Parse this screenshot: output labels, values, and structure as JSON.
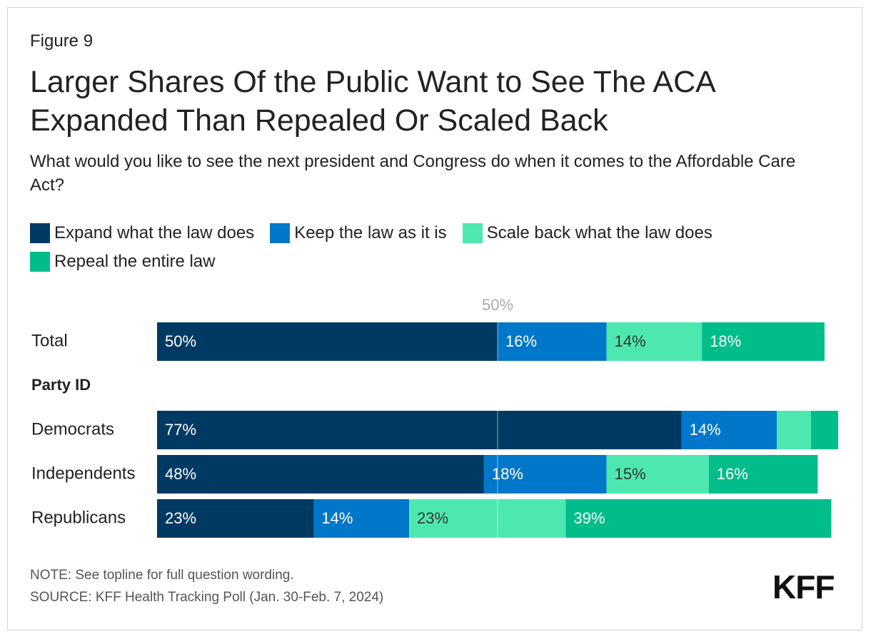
{
  "chart_data": {
    "type": "stacked-bar",
    "figure_label": "Figure 9",
    "title": "Larger Shares Of the Public Want to See The ACA Expanded Than Repealed Or Scaled Back",
    "subtitle": "What would you like to see the next president and Congress do when it comes to the Affordable Care Act?",
    "categories": [
      "Total",
      "Democrats",
      "Independents",
      "Republicans"
    ],
    "group_label": "Party ID",
    "series": [
      {
        "name": "Expand what the law does",
        "color": "#003a63",
        "values": [
          50,
          77,
          48,
          23
        ],
        "value_labels": [
          "50%",
          "77%",
          "48%",
          "23%"
        ]
      },
      {
        "name": "Keep the law as it is",
        "color": "#0077c8",
        "values": [
          16,
          14,
          18,
          14
        ],
        "value_labels": [
          "16%",
          "14%",
          "18%",
          "14%"
        ]
      },
      {
        "name": "Scale back what the law does",
        "color": "#4de8b0",
        "values": [
          14,
          5,
          15,
          23
        ],
        "value_labels": [
          "14%",
          null,
          "15%",
          "23%"
        ]
      },
      {
        "name": "Repeal the entire law",
        "color": "#00bd8a",
        "values": [
          18,
          4,
          16,
          39
        ],
        "value_labels": [
          "18%",
          null,
          "16%",
          "39%"
        ]
      }
    ],
    "xlim": [
      0,
      100
    ],
    "reference_line": {
      "value": 50,
      "label": "50%"
    },
    "note": "NOTE: See topline for full question wording.",
    "source": "SOURCE: KFF Health Tracking Poll (Jan. 30-Feb. 7, 2024)",
    "logo": "KFF"
  }
}
